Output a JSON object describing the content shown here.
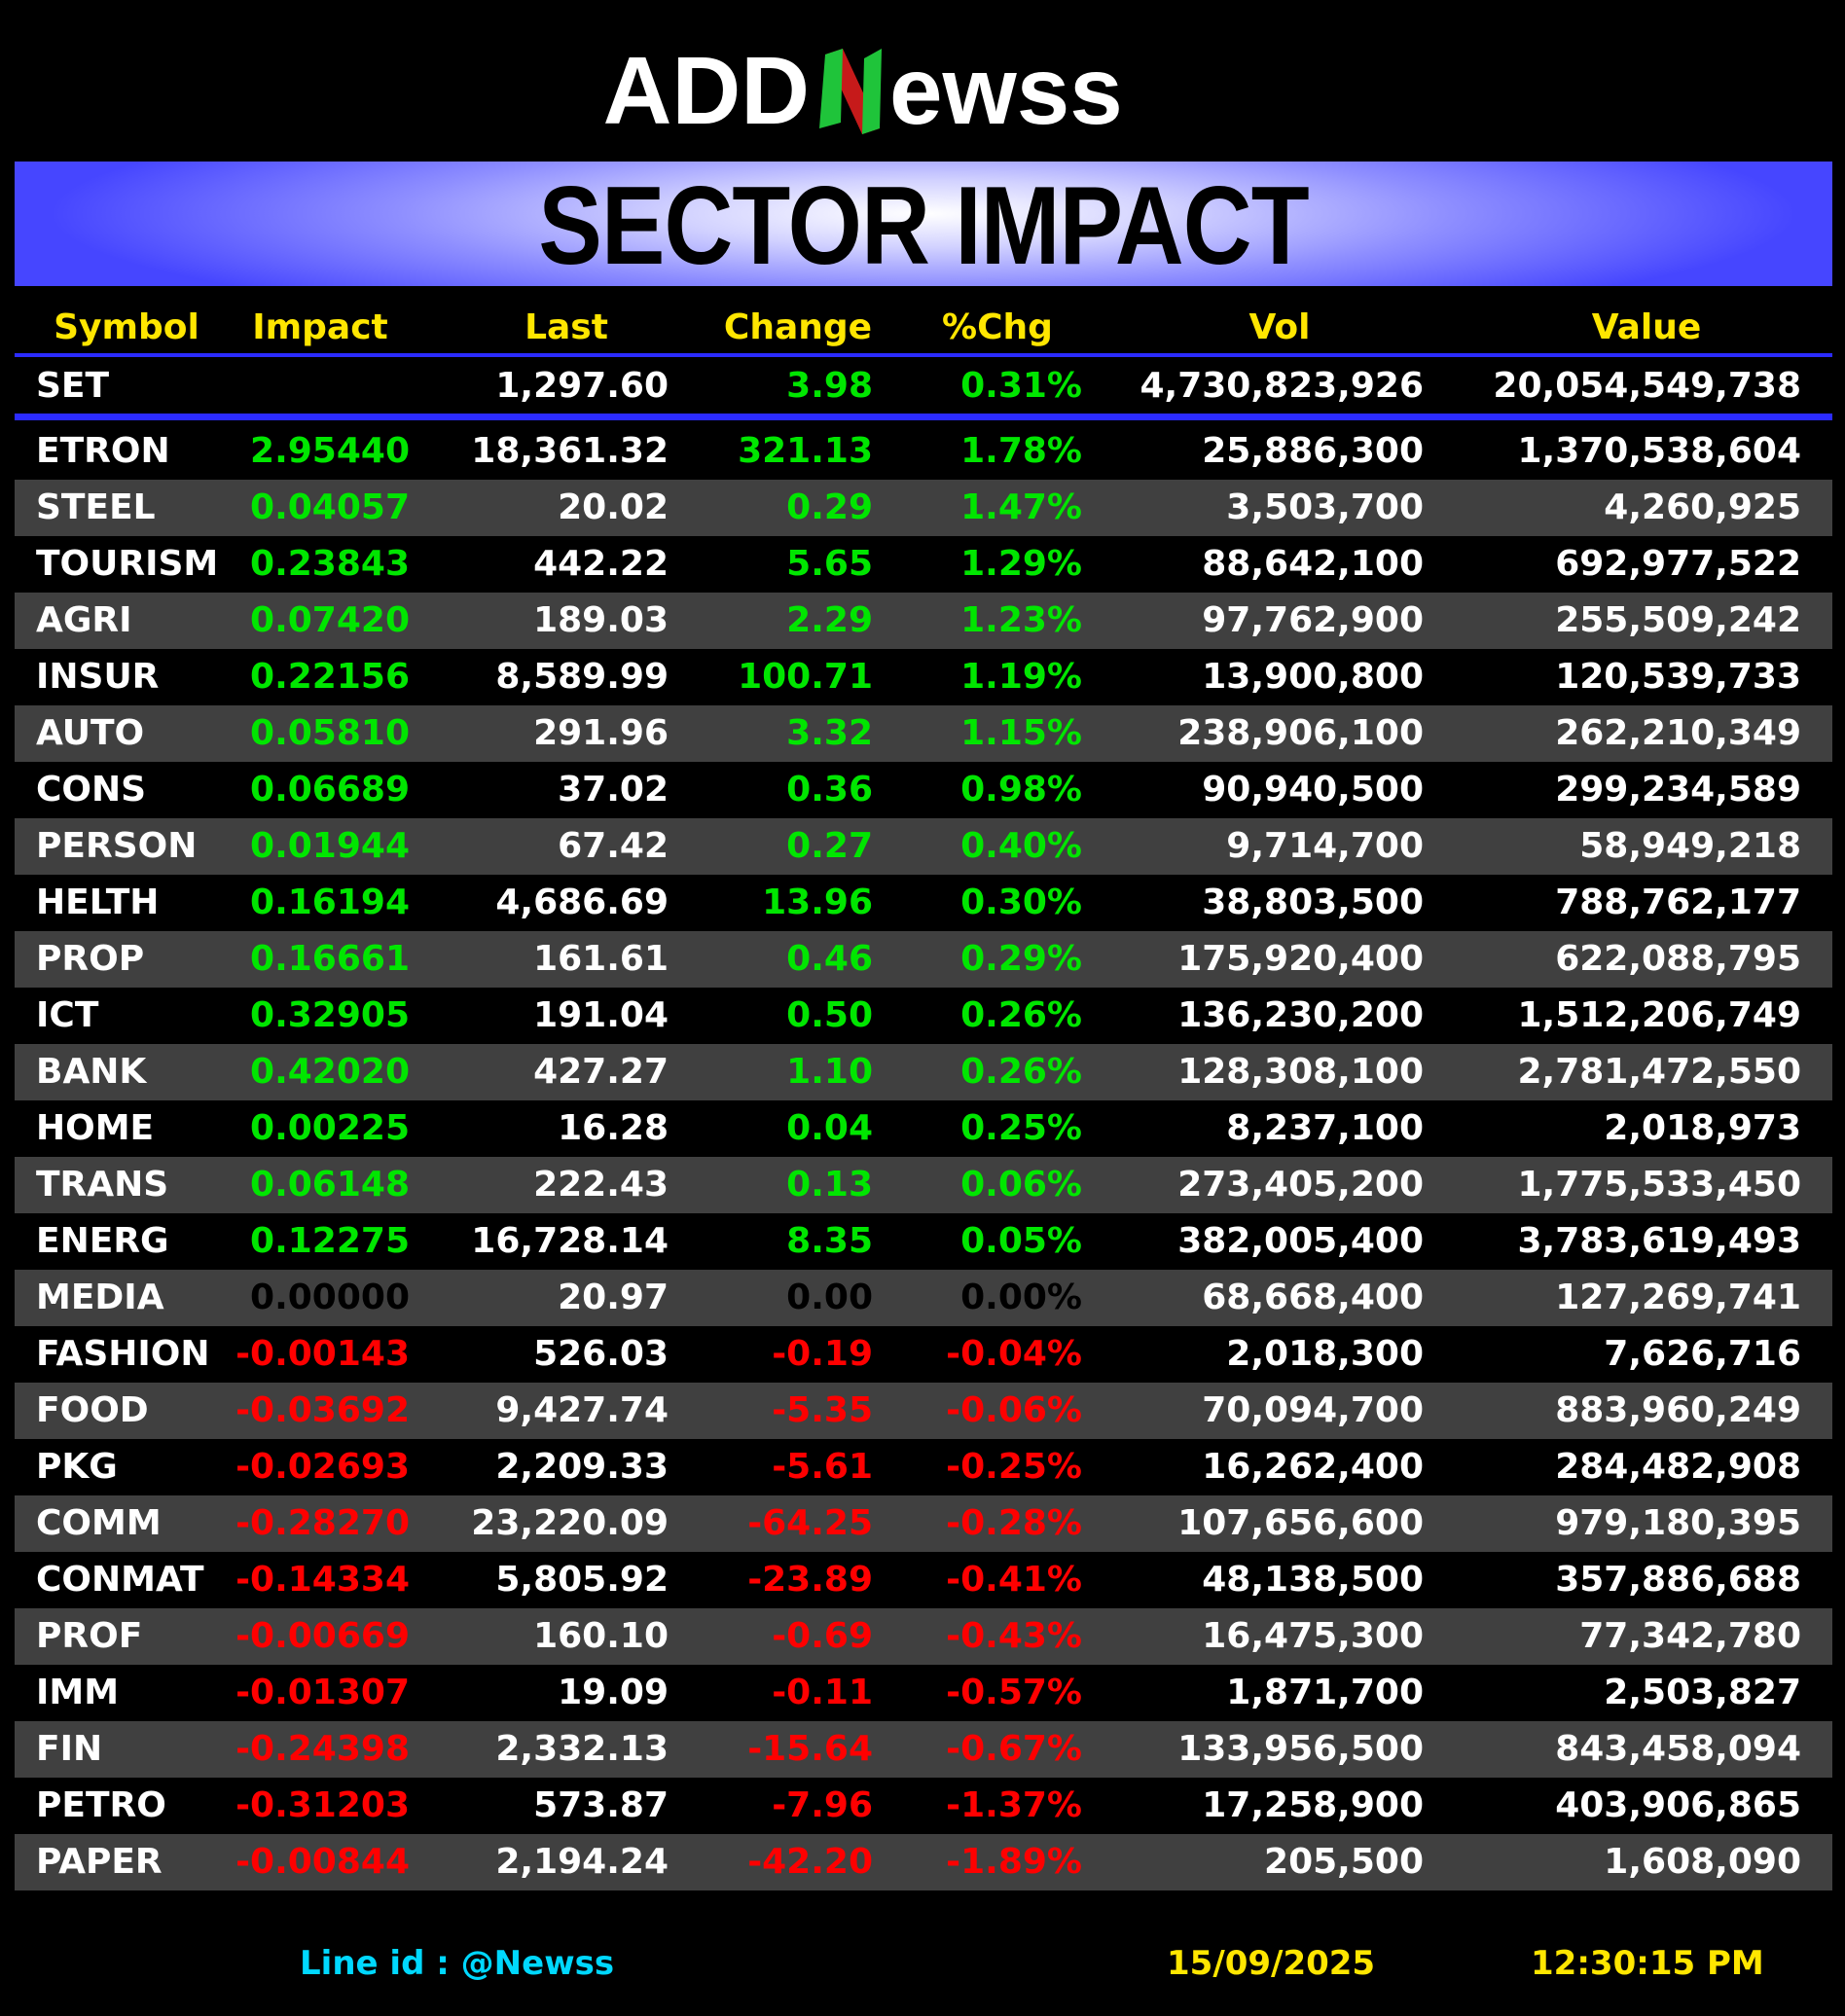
{
  "brand": {
    "logo_left": "ADD",
    "logo_n": "N",
    "logo_right": "ewss",
    "colors": {
      "green": "#1fc43a",
      "red": "#c61a1a",
      "white": "#ffffff"
    }
  },
  "title": "SECTOR IMPACT",
  "columns": [
    "Symbol",
    "Impact",
    "Last",
    "Change",
    "%Chg",
    "Vol",
    "Value"
  ],
  "index_row": {
    "symbol": "SET",
    "impact": "",
    "last": "1,297.60",
    "change": "3.98",
    "pct": "0.31%",
    "vol": "4,730,823,926",
    "value": "20,054,549,738",
    "sign": "pos"
  },
  "rows": [
    {
      "symbol": "ETRON",
      "impact": "2.95440",
      "last": "18,361.32",
      "change": "321.13",
      "pct": "1.78%",
      "vol": "25,886,300",
      "value": "1,370,538,604",
      "sign": "pos"
    },
    {
      "symbol": "STEEL",
      "impact": "0.04057",
      "last": "20.02",
      "change": "0.29",
      "pct": "1.47%",
      "vol": "3,503,700",
      "value": "4,260,925",
      "sign": "pos"
    },
    {
      "symbol": "TOURISM",
      "impact": "0.23843",
      "last": "442.22",
      "change": "5.65",
      "pct": "1.29%",
      "vol": "88,642,100",
      "value": "692,977,522",
      "sign": "pos"
    },
    {
      "symbol": "AGRI",
      "impact": "0.07420",
      "last": "189.03",
      "change": "2.29",
      "pct": "1.23%",
      "vol": "97,762,900",
      "value": "255,509,242",
      "sign": "pos"
    },
    {
      "symbol": "INSUR",
      "impact": "0.22156",
      "last": "8,589.99",
      "change": "100.71",
      "pct": "1.19%",
      "vol": "13,900,800",
      "value": "120,539,733",
      "sign": "pos"
    },
    {
      "symbol": "AUTO",
      "impact": "0.05810",
      "last": "291.96",
      "change": "3.32",
      "pct": "1.15%",
      "vol": "238,906,100",
      "value": "262,210,349",
      "sign": "pos"
    },
    {
      "symbol": "CONS",
      "impact": "0.06689",
      "last": "37.02",
      "change": "0.36",
      "pct": "0.98%",
      "vol": "90,940,500",
      "value": "299,234,589",
      "sign": "pos"
    },
    {
      "symbol": "PERSON",
      "impact": "0.01944",
      "last": "67.42",
      "change": "0.27",
      "pct": "0.40%",
      "vol": "9,714,700",
      "value": "58,949,218",
      "sign": "pos"
    },
    {
      "symbol": "HELTH",
      "impact": "0.16194",
      "last": "4,686.69",
      "change": "13.96",
      "pct": "0.30%",
      "vol": "38,803,500",
      "value": "788,762,177",
      "sign": "pos"
    },
    {
      "symbol": "PROP",
      "impact": "0.16661",
      "last": "161.61",
      "change": "0.46",
      "pct": "0.29%",
      "vol": "175,920,400",
      "value": "622,088,795",
      "sign": "pos"
    },
    {
      "symbol": "ICT",
      "impact": "0.32905",
      "last": "191.04",
      "change": "0.50",
      "pct": "0.26%",
      "vol": "136,230,200",
      "value": "1,512,206,749",
      "sign": "pos"
    },
    {
      "symbol": "BANK",
      "impact": "0.42020",
      "last": "427.27",
      "change": "1.10",
      "pct": "0.26%",
      "vol": "128,308,100",
      "value": "2,781,472,550",
      "sign": "pos"
    },
    {
      "symbol": "HOME",
      "impact": "0.00225",
      "last": "16.28",
      "change": "0.04",
      "pct": "0.25%",
      "vol": "8,237,100",
      "value": "2,018,973",
      "sign": "pos"
    },
    {
      "symbol": "TRANS",
      "impact": "0.06148",
      "last": "222.43",
      "change": "0.13",
      "pct": "0.06%",
      "vol": "273,405,200",
      "value": "1,775,533,450",
      "sign": "pos"
    },
    {
      "symbol": "ENERG",
      "impact": "0.12275",
      "last": "16,728.14",
      "change": "8.35",
      "pct": "0.05%",
      "vol": "382,005,400",
      "value": "3,783,619,493",
      "sign": "pos"
    },
    {
      "symbol": "MEDIA",
      "impact": "0.00000",
      "last": "20.97",
      "change": "0.00",
      "pct": "0.00%",
      "vol": "68,668,400",
      "value": "127,269,741",
      "sign": "zero"
    },
    {
      "symbol": "FASHION",
      "impact": "-0.00143",
      "last": "526.03",
      "change": "-0.19",
      "pct": "-0.04%",
      "vol": "2,018,300",
      "value": "7,626,716",
      "sign": "neg"
    },
    {
      "symbol": "FOOD",
      "impact": "-0.03692",
      "last": "9,427.74",
      "change": "-5.35",
      "pct": "-0.06%",
      "vol": "70,094,700",
      "value": "883,960,249",
      "sign": "neg"
    },
    {
      "symbol": "PKG",
      "impact": "-0.02693",
      "last": "2,209.33",
      "change": "-5.61",
      "pct": "-0.25%",
      "vol": "16,262,400",
      "value": "284,482,908",
      "sign": "neg"
    },
    {
      "symbol": "COMM",
      "impact": "-0.28270",
      "last": "23,220.09",
      "change": "-64.25",
      "pct": "-0.28%",
      "vol": "107,656,600",
      "value": "979,180,395",
      "sign": "neg"
    },
    {
      "symbol": "CONMAT",
      "impact": "-0.14334",
      "last": "5,805.92",
      "change": "-23.89",
      "pct": "-0.41%",
      "vol": "48,138,500",
      "value": "357,886,688",
      "sign": "neg"
    },
    {
      "symbol": "PROF",
      "impact": "-0.00669",
      "last": "160.10",
      "change": "-0.69",
      "pct": "-0.43%",
      "vol": "16,475,300",
      "value": "77,342,780",
      "sign": "neg"
    },
    {
      "symbol": "IMM",
      "impact": "-0.01307",
      "last": "19.09",
      "change": "-0.11",
      "pct": "-0.57%",
      "vol": "1,871,700",
      "value": "2,503,827",
      "sign": "neg"
    },
    {
      "symbol": "FIN",
      "impact": "-0.24398",
      "last": "2,332.13",
      "change": "-15.64",
      "pct": "-0.67%",
      "vol": "133,956,500",
      "value": "843,458,094",
      "sign": "neg"
    },
    {
      "symbol": "PETRO",
      "impact": "-0.31203",
      "last": "573.87",
      "change": "-7.96",
      "pct": "-1.37%",
      "vol": "17,258,900",
      "value": "403,906,865",
      "sign": "neg"
    },
    {
      "symbol": "PAPER",
      "impact": "-0.00844",
      "last": "2,194.24",
      "change": "-42.20",
      "pct": "-1.89%",
      "vol": "205,500",
      "value": "1,608,090",
      "sign": "neg"
    }
  ],
  "footer": {
    "line_id": "Line id  : @Newss",
    "date": "15/09/2025",
    "time": "12:30:15 PM"
  }
}
